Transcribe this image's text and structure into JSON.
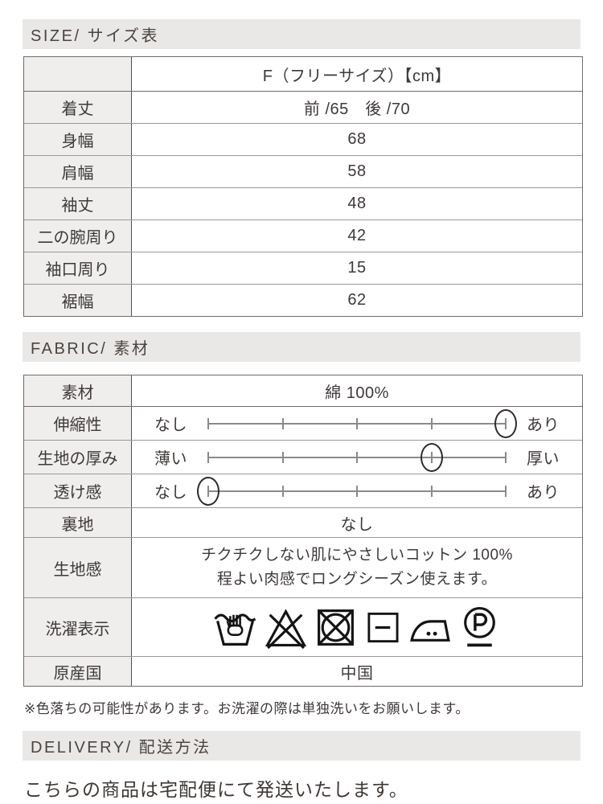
{
  "sections": {
    "size": {
      "title": "SIZE/ サイズ表"
    },
    "fabric": {
      "title": "FABRIC/ 素材"
    },
    "delivery": {
      "title": "DELIVERY/ 配送方法",
      "text": "こちらの商品は宅配便にて発送いたします。"
    }
  },
  "size_table": {
    "column_header": "F（フリーサイズ）【cm】",
    "rows": [
      {
        "label": "着丈",
        "value": "前 /65　後 /70"
      },
      {
        "label": "身幅",
        "value": "68"
      },
      {
        "label": "肩幅",
        "value": "58"
      },
      {
        "label": "袖丈",
        "value": "48"
      },
      {
        "label": "二の腕周り",
        "value": "42"
      },
      {
        "label": "袖口周り",
        "value": "15"
      },
      {
        "label": "裾幅",
        "value": "62"
      }
    ]
  },
  "fabric_table": {
    "material": {
      "label": "素材",
      "value": "綿 100%"
    },
    "scales": [
      {
        "label": "伸縮性",
        "left": "なし",
        "right": "あり",
        "level": 5,
        "max": 5
      },
      {
        "label": "生地の厚み",
        "left": "薄い",
        "right": "厚い",
        "level": 4,
        "max": 5
      },
      {
        "label": "透け感",
        "left": "なし",
        "right": "あり",
        "level": 1,
        "max": 5
      }
    ],
    "lining": {
      "label": "裏地",
      "value": "なし"
    },
    "texture": {
      "label": "生地感",
      "line1": "チクチクしない肌にやさしいコットン 100%",
      "line2": "程よい肉感でロングシーズン使えます。"
    },
    "care": {
      "label": "洗濯表示",
      "icons": [
        "hand-wash",
        "do-not-bleach",
        "do-not-tumble-dry",
        "dry-flat",
        "iron-two-dots",
        "dry-clean-p-mild"
      ]
    },
    "origin": {
      "label": "原産国",
      "value": "中国"
    }
  },
  "note": "※色落ちの可能性があります。お洗濯の際は単独洗いをお願いします。",
  "colors": {
    "bar_bg": "#e9e8e7",
    "label_cell_bg": "#efeeed",
    "text": "#3e3938",
    "border_dark": "#6f6b6a",
    "border_light": "#9b9897",
    "scale": "#8a8a8a",
    "icon": "#141414"
  }
}
